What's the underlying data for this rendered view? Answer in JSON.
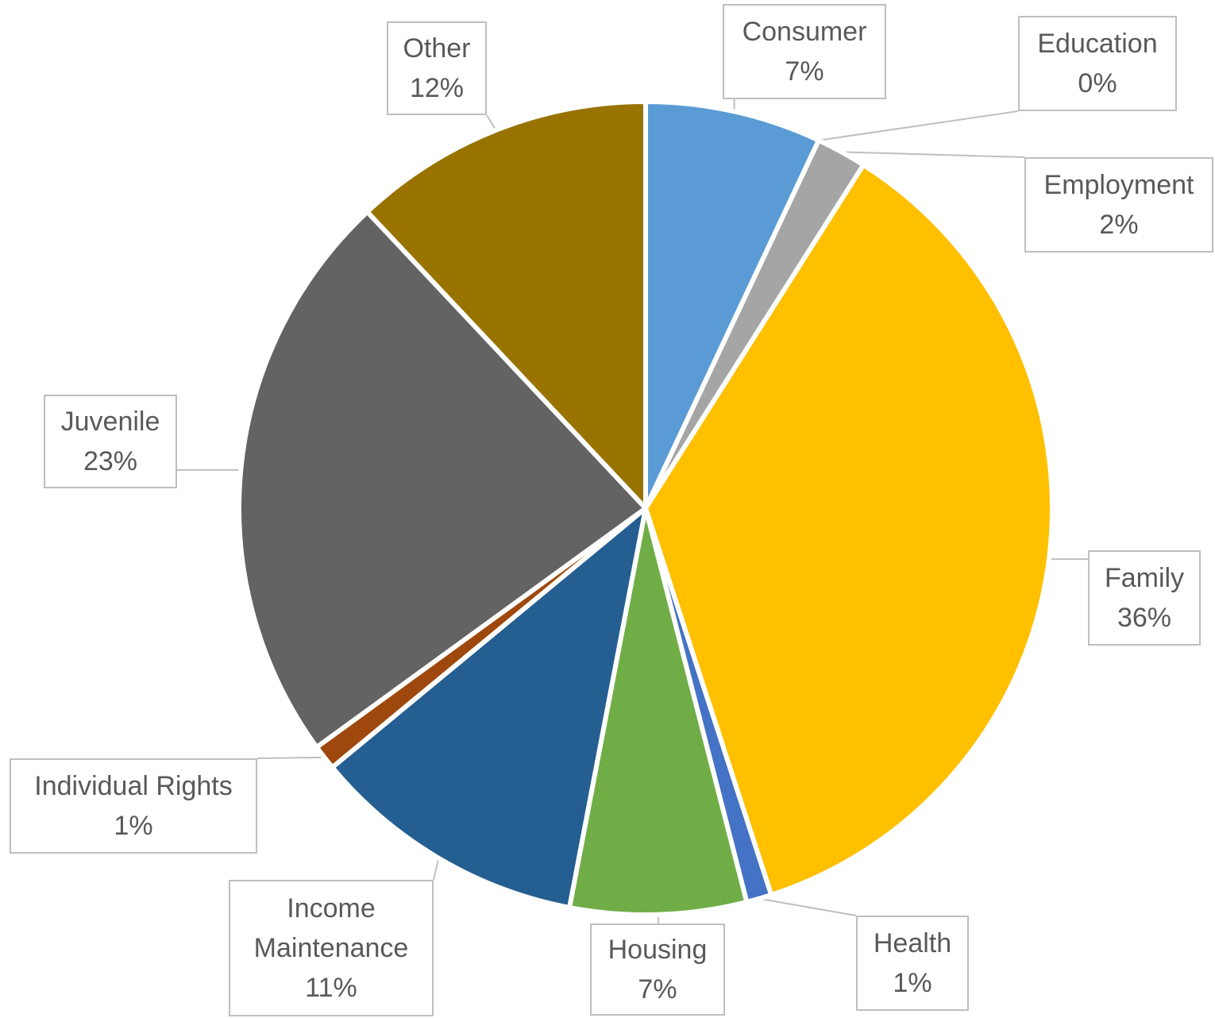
{
  "chart_data": {
    "type": "pie",
    "categories": [
      "Consumer",
      "Education",
      "Employment",
      "Family",
      "Health",
      "Housing",
      "Income Maintenance",
      "Individual Rights",
      "Juvenile",
      "Other"
    ],
    "values": [
      7,
      0,
      2,
      36,
      1,
      7,
      11,
      1,
      23,
      12
    ],
    "value_labels": [
      "7%",
      "0%",
      "2%",
      "36%",
      "1%",
      "7%",
      "11%",
      "1%",
      "23%",
      "12%"
    ],
    "colors": [
      "#5b9bd5",
      "#ed7d31",
      "#a5a5a5",
      "#ffc000",
      "#4472c4",
      "#70ad47",
      "#255e91",
      "#9e480e",
      "#636363",
      "#997300"
    ]
  }
}
